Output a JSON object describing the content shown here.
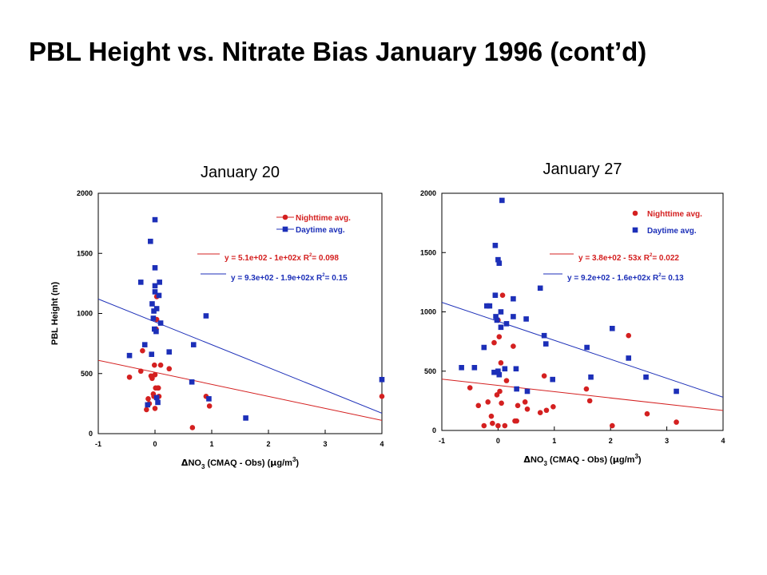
{
  "slide_title": "PBL Height vs. Nitrate Bias January 1996 (cont’d)",
  "colors": {
    "night": "#d42020",
    "day": "#1c2fb8"
  },
  "chart_data": [
    {
      "type": "scatter",
      "title": "January 20",
      "ylabel": "PBL Height (m)",
      "xlabel": {
        "delta": "Δ",
        "base": "NO",
        "sub": "3",
        "paren": "  (CMAQ - Obs)  (",
        "mu": "μ",
        "unit": "g/m",
        "sup": "3",
        "close": ")"
      },
      "xlim": [
        -1,
        4
      ],
      "ylim": [
        0,
        2000
      ],
      "xticks": [
        "-1",
        "0",
        "1",
        "2",
        "3",
        "4"
      ],
      "yticks": [
        "0",
        "500",
        "1000",
        "1500",
        "2000"
      ],
      "legend_position": "top-right",
      "series": [
        {
          "name": "Nighttime avg.",
          "color": "#d42020",
          "marker": "circle",
          "fit": {
            "intercept": 510,
            "slope": -100,
            "label": "y = 5.1e+02 - 1e+02x",
            "r2_prefix": "R",
            "r2_exp": "2",
            "r2_value": "= 0.098"
          },
          "points": [
            [
              -0.45,
              470
            ],
            [
              -0.25,
              520
            ],
            [
              -0.22,
              690
            ],
            [
              -0.15,
              200
            ],
            [
              -0.12,
              290
            ],
            [
              -0.1,
              250
            ],
            [
              -0.07,
              480
            ],
            [
              -0.05,
              460
            ],
            [
              -0.03,
              330
            ],
            [
              -0.02,
              310
            ],
            [
              -0.01,
              570
            ],
            [
              0,
              210
            ],
            [
              0,
              490
            ],
            [
              0.01,
              380
            ],
            [
              0.02,
              870
            ],
            [
              0.03,
              950
            ],
            [
              0.03,
              1140
            ],
            [
              0.05,
              380
            ],
            [
              0.06,
              380
            ],
            [
              0.07,
              310
            ],
            [
              0.1,
              570
            ],
            [
              0.25,
              540
            ],
            [
              0.66,
              50
            ],
            [
              0.9,
              310
            ],
            [
              0.96,
              230
            ],
            [
              4,
              310
            ]
          ]
        },
        {
          "name": "Daytime avg.",
          "color": "#1c2fb8",
          "marker": "square",
          "fit": {
            "intercept": 930,
            "slope": -190,
            "label": "y = 9.3e+02 - 1.9e+02x",
            "r2_prefix": "R",
            "r2_exp": "2",
            "r2_value": "= 0.15"
          },
          "points": [
            [
              -0.45,
              650
            ],
            [
              -0.25,
              1260
            ],
            [
              -0.18,
              740
            ],
            [
              -0.13,
              240
            ],
            [
              -0.08,
              1600
            ],
            [
              -0.06,
              660
            ],
            [
              -0.05,
              1080
            ],
            [
              -0.03,
              960
            ],
            [
              -0.02,
              1020
            ],
            [
              -0.01,
              870
            ],
            [
              0,
              1780
            ],
            [
              0,
              1380
            ],
            [
              0,
              1230
            ],
            [
              0,
              1180
            ],
            [
              0.02,
              850
            ],
            [
              0.03,
              1040
            ],
            [
              0.03,
              300
            ],
            [
              0.05,
              260
            ],
            [
              0.07,
              1150
            ],
            [
              0.08,
              1260
            ],
            [
              0.1,
              920
            ],
            [
              0.25,
              680
            ],
            [
              0.65,
              430
            ],
            [
              0.68,
              740
            ],
            [
              0.9,
              980
            ],
            [
              0.95,
              290
            ],
            [
              1.6,
              130
            ],
            [
              4,
              450
            ]
          ]
        }
      ]
    },
    {
      "type": "scatter",
      "title": "January 27",
      "ylabel": "",
      "xlabel": {
        "delta": "Δ",
        "base": "NO",
        "sub": "3",
        "paren": "  (CMAQ - Obs)  (",
        "mu": "μ",
        "unit": "g/m",
        "sup": "3",
        "close": ")"
      },
      "xlim": [
        -1,
        4
      ],
      "ylim": [
        0,
        2000
      ],
      "xticks": [
        "-1",
        "0",
        "1",
        "2",
        "3",
        "4"
      ],
      "yticks": [
        "0",
        "500",
        "1000",
        "1500",
        "2000"
      ],
      "legend_position": "top-right",
      "series": [
        {
          "name": "Nighttime avg.",
          "color": "#d42020",
          "marker": "circle",
          "fit": {
            "intercept": 380,
            "slope": -53,
            "label": "y = 3.8e+02 - 53x",
            "r2_prefix": "R",
            "r2_exp": "2",
            "r2_value": "= 0.022"
          },
          "points": [
            [
              -0.5,
              360
            ],
            [
              -0.35,
              210
            ],
            [
              -0.25,
              40
            ],
            [
              -0.18,
              240
            ],
            [
              -0.12,
              120
            ],
            [
              -0.1,
              60
            ],
            [
              -0.07,
              740
            ],
            [
              -0.05,
              1140
            ],
            [
              -0.02,
              300
            ],
            [
              0,
              930
            ],
            [
              0,
              40
            ],
            [
              0.02,
              790
            ],
            [
              0.03,
              330
            ],
            [
              0.05,
              570
            ],
            [
              0.06,
              230
            ],
            [
              0.08,
              1140
            ],
            [
              0.12,
              40
            ],
            [
              0.15,
              420
            ],
            [
              0.27,
              710
            ],
            [
              0.3,
              80
            ],
            [
              0.33,
              80
            ],
            [
              0.35,
              210
            ],
            [
              0.48,
              240
            ],
            [
              0.52,
              180
            ],
            [
              0.75,
              150
            ],
            [
              0.82,
              460
            ],
            [
              0.86,
              170
            ],
            [
              0.98,
              200
            ],
            [
              1.57,
              350
            ],
            [
              1.63,
              250
            ],
            [
              2.03,
              40
            ],
            [
              2.32,
              800
            ],
            [
              2.65,
              140
            ],
            [
              3.17,
              70
            ]
          ]
        },
        {
          "name": "Daytime avg.",
          "color": "#1c2fb8",
          "marker": "square",
          "fit": {
            "intercept": 920,
            "slope": -160,
            "label": "y = 9.2e+02 - 1.6e+02x",
            "r2_prefix": "R",
            "r2_exp": "2",
            "r2_value": "= 0.13"
          },
          "points": [
            [
              -0.65,
              530
            ],
            [
              -0.42,
              530
            ],
            [
              -0.25,
              700
            ],
            [
              -0.2,
              1050
            ],
            [
              -0.15,
              1050
            ],
            [
              -0.07,
              490
            ],
            [
              -0.05,
              1560
            ],
            [
              -0.05,
              1140
            ],
            [
              -0.04,
              960
            ],
            [
              -0.02,
              930
            ],
            [
              0,
              500
            ],
            [
              0,
              1440
            ],
            [
              0.02,
              1410
            ],
            [
              0.02,
              470
            ],
            [
              0.05,
              1000
            ],
            [
              0.05,
              870
            ],
            [
              0.07,
              1940
            ],
            [
              0.12,
              520
            ],
            [
              0.15,
              900
            ],
            [
              0.27,
              960
            ],
            [
              0.27,
              1110
            ],
            [
              0.32,
              520
            ],
            [
              0.33,
              350
            ],
            [
              0.5,
              940
            ],
            [
              0.52,
              330
            ],
            [
              0.75,
              1200
            ],
            [
              0.82,
              800
            ],
            [
              0.85,
              730
            ],
            [
              0.97,
              430
            ],
            [
              1.58,
              700
            ],
            [
              1.65,
              450
            ],
            [
              2.03,
              860
            ],
            [
              2.32,
              610
            ],
            [
              2.63,
              450
            ],
            [
              3.17,
              330
            ]
          ]
        }
      ]
    }
  ]
}
